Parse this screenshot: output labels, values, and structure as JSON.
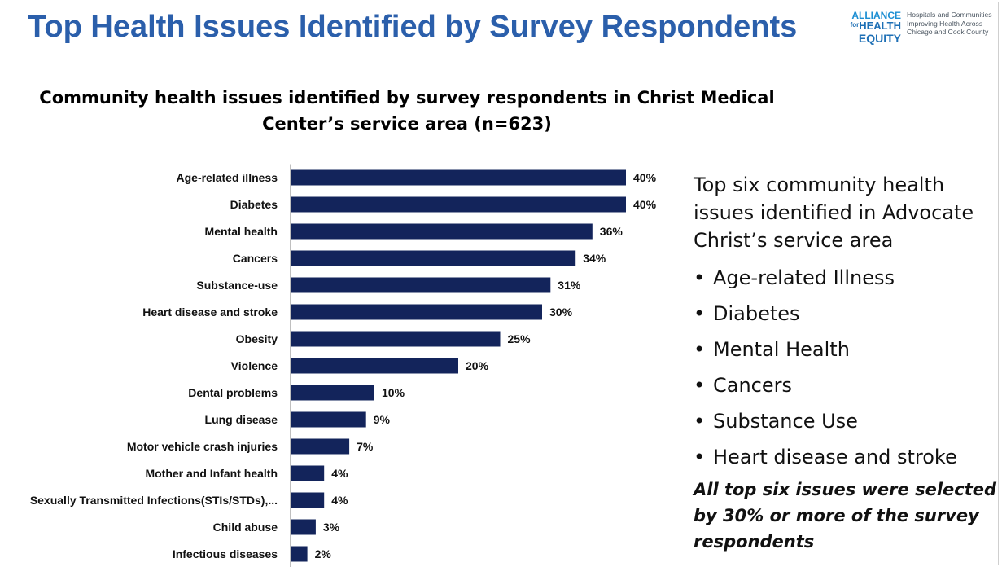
{
  "slide": {
    "title": "Top Health Issues Identified by Survey Respondents"
  },
  "logo": {
    "line1": "ALLIANCE",
    "line2": "HEALTH",
    "line2_prefix": "for",
    "line3": "EQUITY",
    "tagline": "Hospitals and Communities Improving Health Across Chicago and Cook County"
  },
  "chart_data": {
    "type": "bar",
    "orientation": "horizontal",
    "title": "Community health issues identified by survey respondents in Christ Medical Center’s service area (n=623)",
    "categories": [
      "Age-related illness",
      "Diabetes",
      "Mental health",
      "Cancers",
      "Substance-use",
      "Heart disease and stroke",
      "Obesity",
      "Violence",
      "Dental problems",
      "Lung disease",
      "Motor vehicle crash injuries",
      "Mother and Infant health",
      "Sexually Transmitted Infections(STIs/STDs),...",
      "Child abuse",
      "Infectious diseases"
    ],
    "values": [
      40,
      40,
      36,
      34,
      31,
      30,
      25,
      20,
      10,
      9,
      7,
      4,
      4,
      3,
      2
    ],
    "value_labels": [
      "40%",
      "40%",
      "36%",
      "34%",
      "31%",
      "30%",
      "25%",
      "20%",
      "10%",
      "9%",
      "7%",
      "4%",
      "4%",
      "3%",
      "2%"
    ],
    "unit": "%",
    "bar_color": "#13245b",
    "grid": false,
    "legend": "none"
  },
  "side_panel": {
    "heading": "Top six community health issues identified in Advocate Christ’s service area",
    "items": [
      "Age-related Illness",
      "Diabetes",
      "Mental Health",
      "Cancers",
      "Substance Use",
      "Heart disease and stroke"
    ],
    "bullet": "•",
    "note": "All top six issues were selected by 30% or more of the survey respondents"
  }
}
